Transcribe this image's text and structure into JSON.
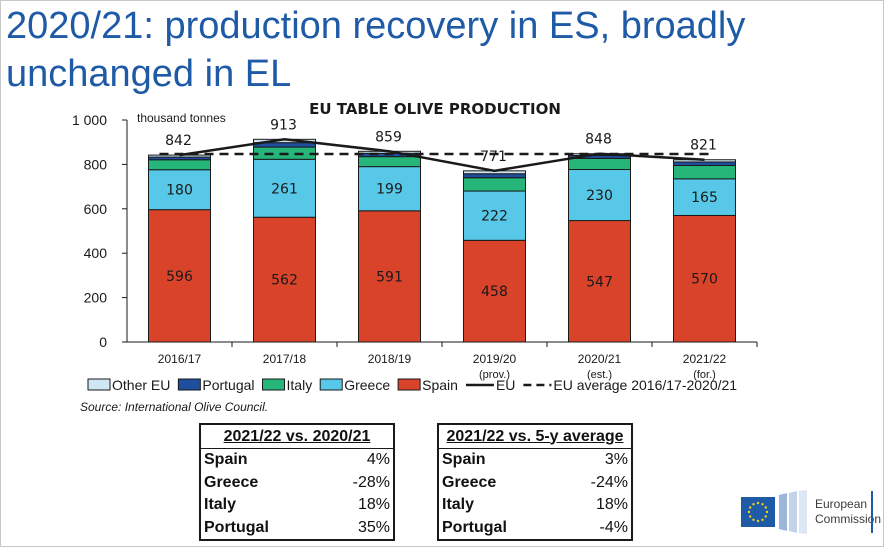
{
  "slide_title_line1": "2020/21: production recovery in ES, broadly",
  "slide_title_line2": "unchanged in EL",
  "chart_data": {
    "type": "bar",
    "stacked": true,
    "title": "EU TABLE OLIVE PRODUCTION",
    "unit_label": "thousand tonnes",
    "ylim": [
      0,
      1000
    ],
    "yticks": [
      0,
      200,
      400,
      600,
      800,
      1000
    ],
    "ytick_labels": [
      "0",
      "200",
      "400",
      "600",
      "800",
      "1 000"
    ],
    "categories": [
      "2016/17",
      "2017/18",
      "2018/19",
      "2019/20",
      "2020/21",
      "2021/22"
    ],
    "category_sublabels": [
      "",
      "",
      "",
      "(prov.)",
      "(est.)",
      "(for.)"
    ],
    "series": [
      {
        "name": "Spain",
        "color": "#d9432a",
        "values": [
          596,
          562,
          591,
          458,
          547,
          570
        ],
        "labels": [
          "596",
          "562",
          "591",
          "458",
          "547",
          "570"
        ]
      },
      {
        "name": "Greece",
        "color": "#57c8e8",
        "values": [
          180,
          261,
          199,
          222,
          230,
          165
        ],
        "labels": [
          "180",
          "261",
          "199",
          "222",
          "230",
          "165"
        ]
      },
      {
        "name": "Italy",
        "color": "#27b67a",
        "values": [
          45,
          55,
          45,
          60,
          50,
          60
        ]
      },
      {
        "name": "Portugal",
        "color": "#1f4e9e",
        "values": [
          12,
          20,
          15,
          18,
          13,
          16
        ]
      },
      {
        "name": "Other EU",
        "color": "#cfe6f4",
        "values": [
          9,
          15,
          9,
          13,
          8,
          10
        ]
      }
    ],
    "eu_total": {
      "name": "EU",
      "values": [
        842,
        913,
        859,
        771,
        848,
        821
      ],
      "labels": [
        "842",
        "913",
        "859",
        "771",
        "848",
        "821"
      ]
    },
    "eu_average": {
      "name": "EU average 2016/17-2020/21",
      "value": 847
    },
    "legend": [
      {
        "label": "Other EU",
        "type": "box",
        "color": "#cfe6f4"
      },
      {
        "label": "Portugal",
        "type": "box",
        "color": "#1f4e9e"
      },
      {
        "label": "Italy",
        "type": "box",
        "color": "#27b67a"
      },
      {
        "label": "Greece",
        "type": "box",
        "color": "#57c8e8"
      },
      {
        "label": "Spain",
        "type": "box",
        "color": "#d9432a"
      },
      {
        "label": "EU",
        "type": "line"
      },
      {
        "label": "EU average 2016/17-2020/21",
        "type": "dash"
      }
    ],
    "legend_position": "bottom"
  },
  "source": "Source: International Olive Council.",
  "table1": {
    "header": "2021/22 vs. 2020/21",
    "rows": [
      {
        "name": "Spain",
        "value": "4%"
      },
      {
        "name": "Greece",
        "value": "-28%"
      },
      {
        "name": "Italy",
        "value": "18%"
      },
      {
        "name": "Portugal",
        "value": "35%"
      }
    ]
  },
  "table2": {
    "header": "2021/22 vs. 5-y average",
    "rows": [
      {
        "name": "Spain",
        "value": "3%"
      },
      {
        "name": "Greece",
        "value": "-24%"
      },
      {
        "name": "Italy",
        "value": "18%"
      },
      {
        "name": "Portugal",
        "value": "-4%"
      }
    ]
  },
  "logo": {
    "line1": "European",
    "line2": "Commission",
    "flag_color": "#1f5aa6",
    "star_color": "#f5d312"
  }
}
